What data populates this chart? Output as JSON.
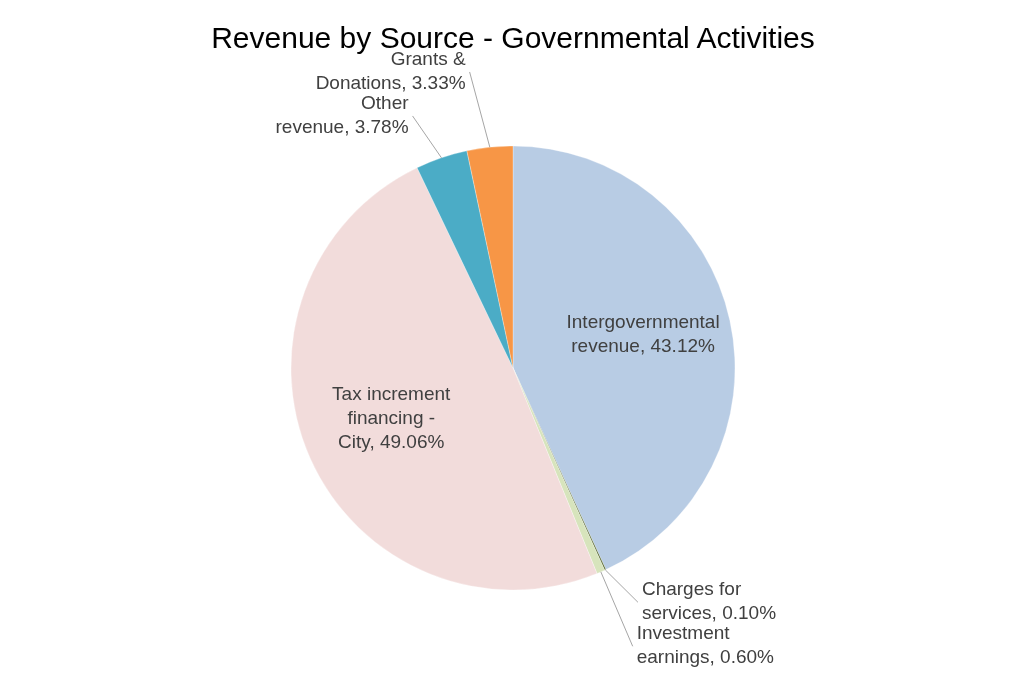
{
  "chart_data": {
    "type": "pie",
    "title": "Revenue by Source - Governmental Activities",
    "categories": [
      "Intergovernmental revenue",
      "Charges for services",
      "Investment earnings",
      "Tax increment financing - City",
      "Other revenue",
      "Grants & Donations"
    ],
    "values": [
      43.12,
      0.1,
      0.6,
      49.06,
      3.78,
      3.33
    ],
    "value_labels": [
      "43.12%",
      "0.10%",
      "0.60%",
      "49.06%",
      "3.78%",
      "3.33%"
    ],
    "colors": [
      "#b8cce4",
      "#4f6228",
      "#d7e4bc",
      "#f2dcdb",
      "#4bacc6",
      "#f79646"
    ]
  }
}
